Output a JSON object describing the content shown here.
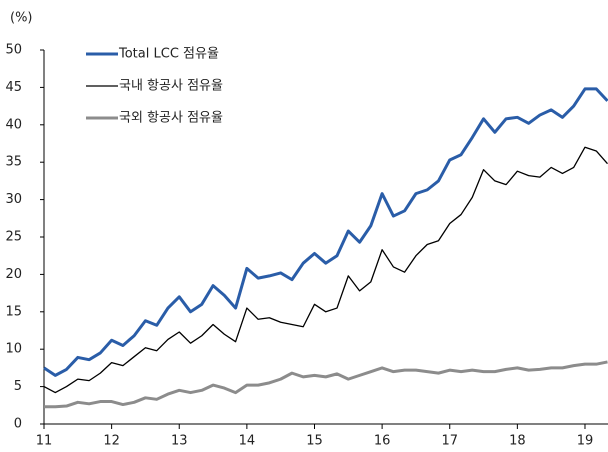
{
  "chart_data": {
    "type": "line",
    "y_label": "(%)",
    "x": [
      11,
      11.167,
      11.333,
      11.5,
      11.667,
      11.833,
      12,
      12.167,
      12.333,
      12.5,
      12.667,
      12.833,
      13,
      13.167,
      13.333,
      13.5,
      13.667,
      13.833,
      14,
      14.167,
      14.333,
      14.5,
      14.667,
      14.833,
      15,
      15.167,
      15.333,
      15.5,
      15.667,
      15.833,
      16,
      16.167,
      16.333,
      16.5,
      16.667,
      16.833,
      17,
      17.167,
      17.333,
      17.5,
      17.667,
      17.833,
      18,
      18.167,
      18.333,
      18.5,
      18.667,
      18.833,
      19,
      19.167,
      19.333
    ],
    "series": [
      {
        "name": "Total LCC 점유율",
        "color": "#2a5da8",
        "width": 3,
        "values": [
          7.5,
          6.5,
          7.3,
          8.9,
          8.6,
          9.5,
          11.2,
          10.5,
          11.8,
          13.8,
          13.2,
          15.5,
          17.0,
          15.0,
          16.0,
          18.5,
          17.2,
          15.5,
          20.8,
          19.5,
          19.8,
          20.2,
          19.3,
          21.5,
          22.8,
          21.5,
          22.5,
          25.8,
          24.3,
          26.5,
          30.8,
          27.8,
          28.5,
          30.8,
          31.3,
          32.5,
          35.3,
          36.0,
          38.3,
          40.8,
          39.0,
          40.8,
          41.0,
          40.2,
          41.3,
          42.0,
          41.0,
          42.5,
          44.8,
          44.8,
          43.2
        ]
      },
      {
        "name": "국내 항공사 점유율",
        "color": "#000000",
        "width": 1.3,
        "values": [
          5.0,
          4.2,
          5.0,
          6.0,
          5.8,
          6.8,
          8.2,
          7.8,
          9.0,
          10.2,
          9.8,
          11.3,
          12.3,
          10.8,
          11.8,
          13.3,
          12.0,
          11.0,
          15.5,
          14.0,
          14.2,
          13.6,
          13.3,
          13.0,
          16.0,
          15.0,
          15.5,
          19.8,
          17.8,
          19.0,
          23.3,
          21.0,
          20.3,
          22.5,
          24.0,
          24.5,
          26.8,
          28.0,
          30.3,
          34.0,
          32.5,
          32.0,
          33.8,
          33.2,
          33.0,
          34.3,
          33.5,
          34.3,
          37.0,
          36.5,
          34.8
        ]
      },
      {
        "name": "국외 항공사 점유율",
        "color": "#8c8c8c",
        "width": 3,
        "values": [
          2.3,
          2.3,
          2.4,
          2.9,
          2.7,
          3.0,
          3.0,
          2.6,
          2.9,
          3.5,
          3.3,
          4.0,
          4.5,
          4.2,
          4.5,
          5.2,
          4.8,
          4.2,
          5.2,
          5.2,
          5.5,
          6.0,
          6.8,
          6.3,
          6.5,
          6.3,
          6.7,
          6.0,
          6.5,
          7.0,
          7.5,
          7.0,
          7.2,
          7.2,
          7.0,
          6.8,
          7.2,
          7.0,
          7.2,
          7.0,
          7.0,
          7.3,
          7.5,
          7.2,
          7.3,
          7.5,
          7.5,
          7.8,
          8.0,
          8.0,
          8.3
        ]
      }
    ],
    "xlim": [
      11,
      19.333
    ],
    "xticks": [
      11,
      12,
      13,
      14,
      15,
      16,
      17,
      18,
      19
    ],
    "ylim": [
      0,
      50
    ],
    "yticks": [
      0,
      5,
      10,
      15,
      20,
      25,
      30,
      35,
      40,
      45,
      50
    ],
    "legend": "top-left",
    "grid": false
  }
}
